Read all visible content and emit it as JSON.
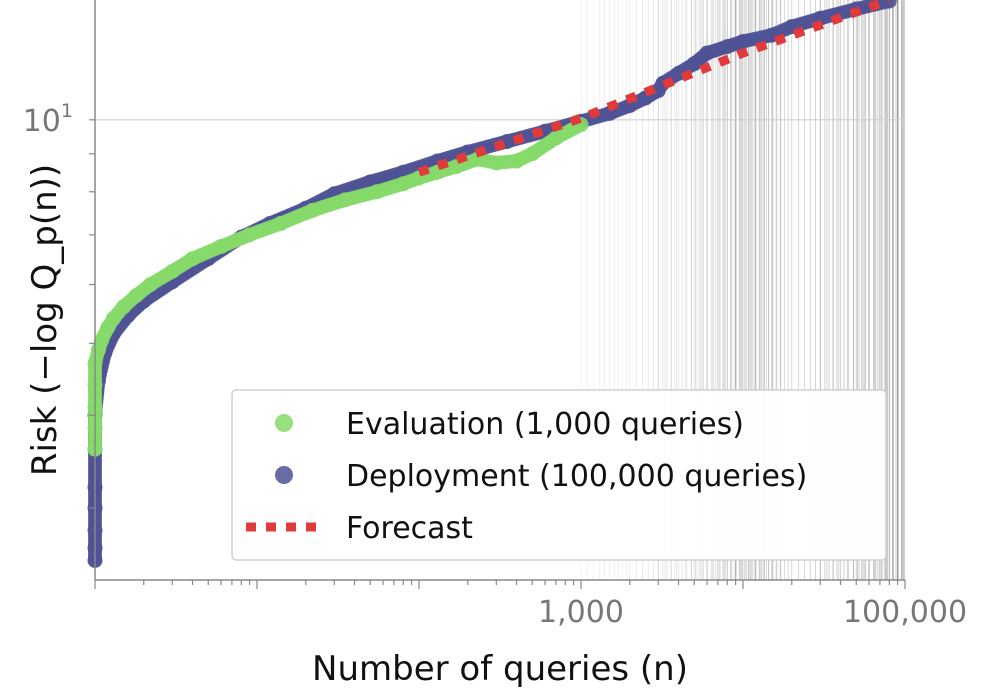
{
  "chart_data": {
    "type": "scatter",
    "title": "",
    "xlabel": "Number of queries (n)",
    "ylabel": "Risk (−log Q_p(n))",
    "x_scale": "log",
    "y_scale": "log",
    "xlim": [
      1,
      100000
    ],
    "ylim": [
      2.4,
      14.5
    ],
    "x_ticks": [
      {
        "value": 1000,
        "label": "1,000"
      },
      {
        "value": 100000,
        "label": "100,000"
      }
    ],
    "y_ticks": [
      {
        "value": 10,
        "label": "10",
        "exponent": "1"
      }
    ],
    "grid": "horizontal line at 10; vertical gridlines from 1,000 to 100,000 that become denser toward the right",
    "legend": {
      "placement": "lower-right",
      "entries": [
        {
          "label": "Evaluation (1,000 queries)",
          "marker": "circle",
          "color": "#86D96A"
        },
        {
          "label": "Deployment (100,000 queries)",
          "marker": "circle",
          "color": "#4F5395"
        },
        {
          "label": "Forecast",
          "marker": "dotted-line",
          "color": "#E03A3A"
        }
      ]
    },
    "series": [
      {
        "color": "#4F5395",
        "x": [
          1,
          1,
          1,
          1,
          1,
          1,
          1,
          1.05,
          1.15,
          1.3,
          1.6,
          2,
          3,
          5,
          8,
          12,
          20,
          30,
          50,
          80,
          130,
          200,
          350,
          600,
          1000,
          1500,
          2000,
          2500,
          3000,
          3200,
          4000,
          5000,
          6000,
          8000,
          10000,
          15000,
          20000,
          30000,
          50000,
          80000
        ],
        "y": [
          2.55,
          2.65,
          2.8,
          3.0,
          3.2,
          3.6,
          4.0,
          4.45,
          4.85,
          5.15,
          5.45,
          5.7,
          6.05,
          6.5,
          6.95,
          7.25,
          7.6,
          7.95,
          8.25,
          8.5,
          8.8,
          9.05,
          9.35,
          9.65,
          9.95,
          10.2,
          10.45,
          10.7,
          10.95,
          11.2,
          11.55,
          11.9,
          12.3,
          12.55,
          12.75,
          13.0,
          13.35,
          13.7,
          14.1,
          14.45
        ]
      },
      {
        "color": "#86D96A",
        "x": [
          1,
          1,
          1,
          1,
          1,
          1.05,
          1.1,
          1.2,
          1.3,
          1.5,
          1.8,
          2.2,
          3,
          4,
          6,
          9,
          14,
          22,
          35,
          55,
          80,
          100,
          130,
          170,
          230,
          300,
          400,
          500,
          700,
          1000
        ],
        "y": [
          3.6,
          3.85,
          4.1,
          4.4,
          4.7,
          4.9,
          5.05,
          5.25,
          5.4,
          5.6,
          5.8,
          6.0,
          6.25,
          6.5,
          6.75,
          7.0,
          7.25,
          7.55,
          7.8,
          8.0,
          8.2,
          8.35,
          8.5,
          8.65,
          8.85,
          8.75,
          8.8,
          9.0,
          9.45,
          9.85
        ]
      },
      {
        "color": "#E03A3A",
        "x": [
          100,
          1000,
          10000,
          80000
        ],
        "y": [
          8.5,
          10.05,
          12.3,
          14.5
        ]
      }
    ]
  }
}
